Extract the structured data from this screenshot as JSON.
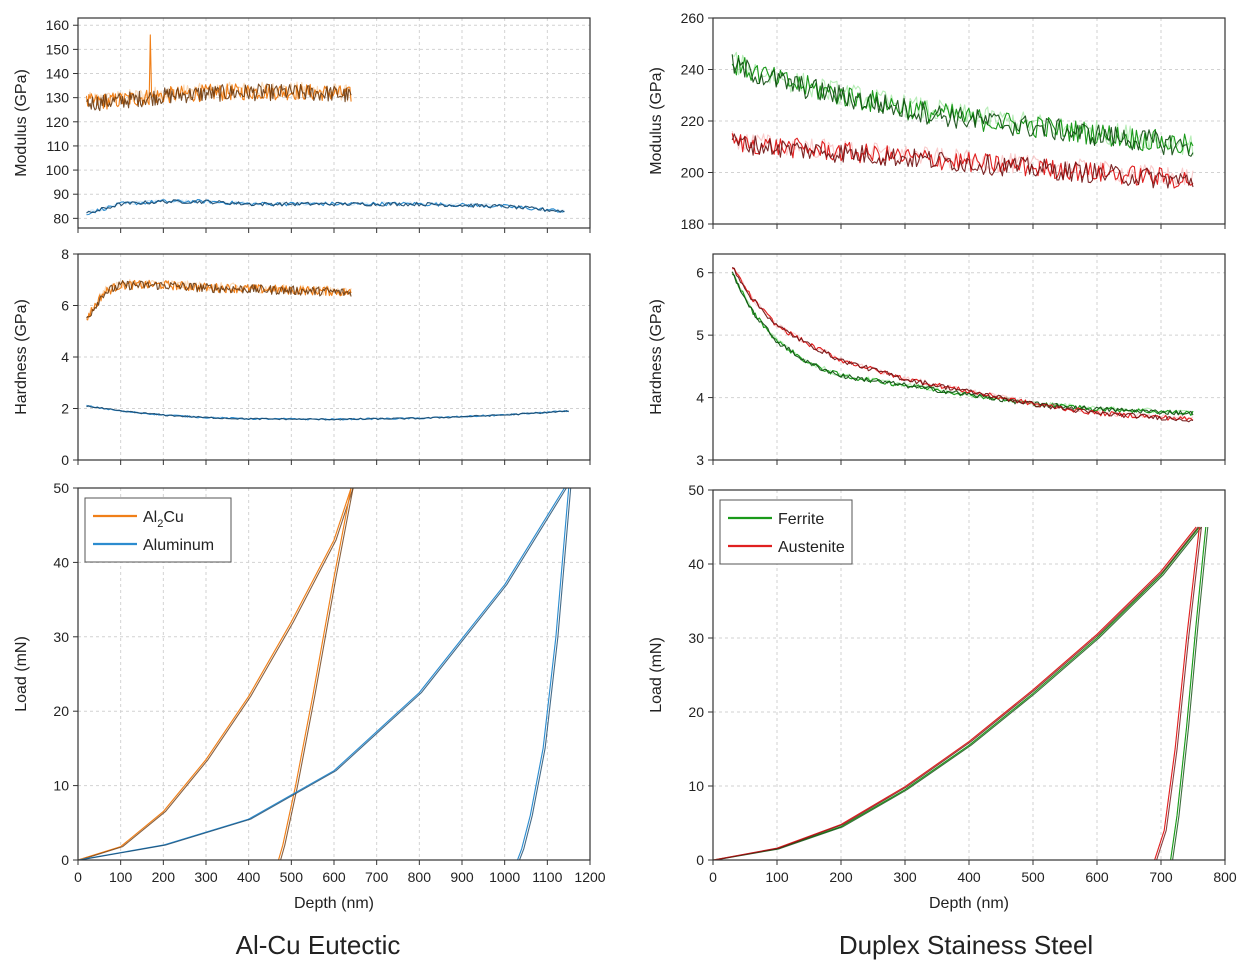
{
  "colors": {
    "orange": "#f07f18",
    "orange_dark": "#6a3a10",
    "orange_light": "#f6b46f",
    "blue": "#2c8ccf",
    "blue_dark": "#16466a",
    "blue_light": "#a6d0ee",
    "green": "#1a9a1a",
    "green_dark": "#0d4a0d",
    "green_light": "#6fdc6f",
    "red": "#e02020",
    "red_dark": "#6e1010",
    "red_light": "#f59a9a"
  },
  "groups": [
    {
      "title": "Al-Cu Eutectic"
    },
    {
      "title": "Duplex Stainess Steel"
    }
  ],
  "chart_data": [
    {
      "type": "line",
      "panel": "alcu-modulus",
      "ylabel": "Modulus (GPa)",
      "ylim": [
        76,
        163
      ],
      "yticks": [
        80,
        90,
        100,
        110,
        120,
        130,
        140,
        150,
        160
      ],
      "xlim": [
        0,
        1200
      ],
      "grid": true,
      "series": [
        {
          "name": "Al2Cu",
          "color": "orange",
          "points": [
            [
              20,
              128
            ],
            [
              100,
              129
            ],
            [
              200,
              131
            ],
            [
              300,
              132
            ],
            [
              400,
              132.5
            ],
            [
              500,
              132.5
            ],
            [
              600,
              132
            ],
            [
              640,
              131
            ]
          ],
          "noise": 3.5,
          "spike": [
            170,
            156
          ]
        },
        {
          "name": "Aluminum",
          "color": "blue",
          "points": [
            [
              20,
              82
            ],
            [
              100,
              86
            ],
            [
              200,
              87
            ],
            [
              300,
              87
            ],
            [
              400,
              86
            ],
            [
              500,
              86
            ],
            [
              600,
              86
            ],
            [
              800,
              86
            ],
            [
              1000,
              85
            ],
            [
              1140,
              83
            ]
          ],
          "noise": 0.8
        }
      ]
    },
    {
      "type": "line",
      "panel": "alcu-hardness",
      "ylabel": "Hardness (GPa)",
      "ylim": [
        0,
        8
      ],
      "yticks": [
        0,
        2,
        4,
        6,
        8
      ],
      "xlim": [
        0,
        1200
      ],
      "grid": true,
      "series": [
        {
          "name": "Al2Cu",
          "color": "orange",
          "points": [
            [
              20,
              5.5
            ],
            [
              60,
              6.5
            ],
            [
              100,
              6.8
            ],
            [
              200,
              6.8
            ],
            [
              300,
              6.7
            ],
            [
              400,
              6.65
            ],
            [
              500,
              6.6
            ],
            [
              600,
              6.55
            ],
            [
              640,
              6.5
            ]
          ],
          "noise": 0.18
        },
        {
          "name": "Aluminum",
          "color": "blue",
          "points": [
            [
              20,
              2.1
            ],
            [
              100,
              1.9
            ],
            [
              200,
              1.75
            ],
            [
              300,
              1.65
            ],
            [
              400,
              1.6
            ],
            [
              600,
              1.58
            ],
            [
              800,
              1.62
            ],
            [
              1000,
              1.75
            ],
            [
              1150,
              1.9
            ]
          ],
          "noise": 0.03
        }
      ]
    },
    {
      "type": "line",
      "panel": "alcu-load",
      "xlabel": "Depth (nm)",
      "ylabel": "Load (mN)",
      "xlim": [
        0,
        1200
      ],
      "ylim": [
        0,
        50
      ],
      "xticks": [
        0,
        100,
        200,
        300,
        400,
        500,
        600,
        700,
        800,
        900,
        1000,
        1100,
        1200
      ],
      "yticks": [
        0,
        10,
        20,
        30,
        40,
        50
      ],
      "grid": true,
      "legend": {
        "placement": "top-left",
        "entries": [
          {
            "label": "Al",
            "sub": "2",
            "suffix": "Cu",
            "color": "orange"
          },
          {
            "label": "Aluminum",
            "sub": "",
            "suffix": "",
            "color": "blue"
          }
        ]
      },
      "series": [
        {
          "name": "Al2Cu loading",
          "color": "orange",
          "points": [
            [
              0,
              0
            ],
            [
              100,
              1.8
            ],
            [
              200,
              6.5
            ],
            [
              300,
              13.5
            ],
            [
              400,
              22
            ],
            [
              500,
              32
            ],
            [
              600,
              43
            ],
            [
              640,
              50
            ]
          ]
        },
        {
          "name": "Al2Cu unloading",
          "color": "orange",
          "points": [
            [
              640,
              50
            ],
            [
              600,
              38
            ],
            [
              550,
              22
            ],
            [
              510,
              10
            ],
            [
              480,
              2
            ],
            [
              470,
              0
            ]
          ]
        },
        {
          "name": "Aluminum loading",
          "color": "blue",
          "points": [
            [
              0,
              0
            ],
            [
              200,
              2
            ],
            [
              400,
              5.5
            ],
            [
              600,
              12
            ],
            [
              800,
              22.5
            ],
            [
              1000,
              37
            ],
            [
              1140,
              50
            ]
          ]
        },
        {
          "name": "Aluminum unloading",
          "color": "blue",
          "points": [
            [
              1150,
              50
            ],
            [
              1120,
              30
            ],
            [
              1090,
              15
            ],
            [
              1060,
              6
            ],
            [
              1040,
              1.5
            ],
            [
              1030,
              0
            ]
          ]
        }
      ]
    },
    {
      "type": "line",
      "panel": "dss-modulus",
      "ylabel": "Modulus (GPa)",
      "ylim": [
        180,
        260
      ],
      "yticks": [
        180,
        200,
        220,
        240,
        260
      ],
      "xlim": [
        0,
        800
      ],
      "grid": true,
      "series": [
        {
          "name": "Ferrite",
          "color": "green",
          "points": [
            [
              30,
              242
            ],
            [
              100,
              236
            ],
            [
              200,
              230
            ],
            [
              300,
              225
            ],
            [
              400,
              221
            ],
            [
              500,
              218
            ],
            [
              600,
              215
            ],
            [
              700,
              212
            ],
            [
              750,
              210
            ]
          ],
          "noise": 4.5
        },
        {
          "name": "Austenite",
          "color": "red",
          "points": [
            [
              30,
              212
            ],
            [
              100,
              210
            ],
            [
              200,
              208
            ],
            [
              300,
              206
            ],
            [
              400,
              204
            ],
            [
              500,
              202
            ],
            [
              600,
              200
            ],
            [
              700,
              198
            ],
            [
              750,
              197
            ]
          ],
          "noise": 4
        }
      ]
    },
    {
      "type": "line",
      "panel": "dss-hardness",
      "ylabel": "Hardness (GPa)",
      "ylim": [
        3,
        6.3
      ],
      "yticks": [
        3,
        4,
        5,
        6
      ],
      "xlim": [
        0,
        800
      ],
      "grid": true,
      "series": [
        {
          "name": "Ferrite",
          "color": "green",
          "points": [
            [
              30,
              6.0
            ],
            [
              60,
              5.4
            ],
            [
              100,
              4.9
            ],
            [
              150,
              4.55
            ],
            [
              200,
              4.35
            ],
            [
              300,
              4.2
            ],
            [
              400,
              4.05
            ],
            [
              500,
              3.9
            ],
            [
              600,
              3.82
            ],
            [
              750,
              3.75
            ]
          ],
          "noise": 0.04
        },
        {
          "name": "Austenite",
          "color": "red",
          "points": [
            [
              30,
              6.1
            ],
            [
              60,
              5.6
            ],
            [
              100,
              5.15
            ],
            [
              150,
              4.85
            ],
            [
              200,
              4.6
            ],
            [
              300,
              4.3
            ],
            [
              400,
              4.1
            ],
            [
              500,
              3.9
            ],
            [
              600,
              3.75
            ],
            [
              750,
              3.65
            ]
          ],
          "noise": 0.04
        }
      ]
    },
    {
      "type": "line",
      "panel": "dss-load",
      "xlabel": "Depth (nm)",
      "ylabel": "Load (mN)",
      "xlim": [
        0,
        800
      ],
      "ylim": [
        0,
        50
      ],
      "xticks": [
        0,
        100,
        200,
        300,
        400,
        500,
        600,
        700,
        800
      ],
      "yticks": [
        0,
        10,
        20,
        30,
        40,
        50
      ],
      "grid": true,
      "legend": {
        "placement": "top-left",
        "entries": [
          {
            "label": "Ferrite",
            "sub": "",
            "suffix": "",
            "color": "green"
          },
          {
            "label": "Austenite",
            "sub": "",
            "suffix": "",
            "color": "red"
          }
        ]
      },
      "series": [
        {
          "name": "Ferrite loading",
          "color": "green",
          "points": [
            [
              0,
              0
            ],
            [
              100,
              1.5
            ],
            [
              200,
              4.5
            ],
            [
              300,
              9.5
            ],
            [
              400,
              15.5
            ],
            [
              500,
              22.5
            ],
            [
              600,
              30
            ],
            [
              700,
              38.5
            ],
            [
              760,
              45
            ]
          ]
        },
        {
          "name": "Ferrite unloading",
          "color": "green",
          "points": [
            [
              770,
              45
            ],
            [
              755,
              32
            ],
            [
              740,
              18
            ],
            [
              725,
              6
            ],
            [
              715,
              0
            ]
          ]
        },
        {
          "name": "Austenite loading",
          "color": "red",
          "points": [
            [
              0,
              0
            ],
            [
              100,
              1.6
            ],
            [
              200,
              4.8
            ],
            [
              300,
              9.9
            ],
            [
              400,
              16
            ],
            [
              500,
              23
            ],
            [
              600,
              30.5
            ],
            [
              700,
              39
            ],
            [
              755,
              45
            ]
          ]
        },
        {
          "name": "Austenite unloading",
          "color": "red",
          "points": [
            [
              760,
              45
            ],
            [
              740,
              30
            ],
            [
              722,
              15
            ],
            [
              705,
              4
            ],
            [
              690,
              0
            ]
          ]
        }
      ]
    }
  ]
}
